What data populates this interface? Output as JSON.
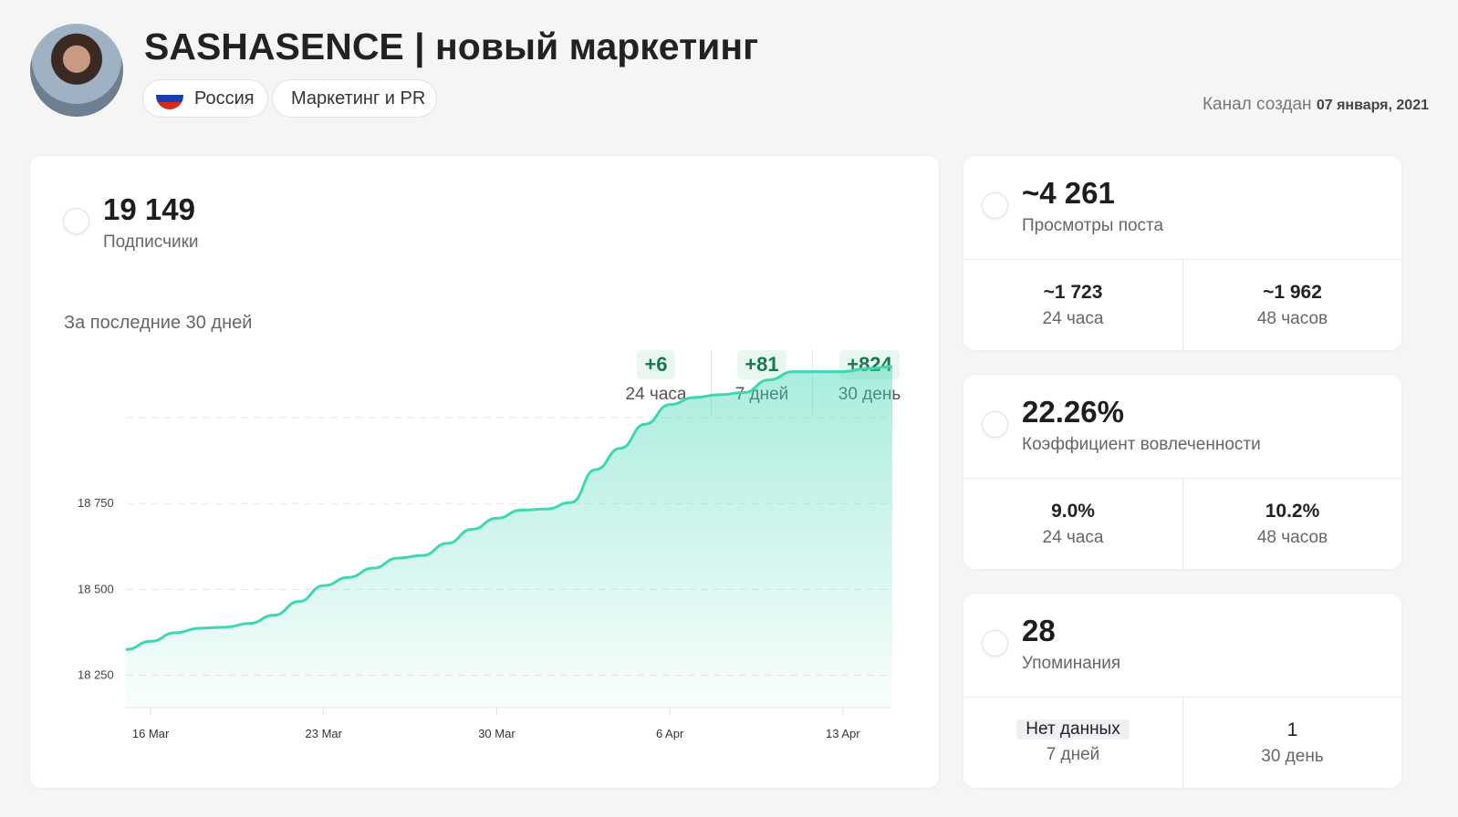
{
  "header": {
    "title": "SASHASENCE | новый маркетинг",
    "country": "Россия",
    "category": "Маркетинг и PR",
    "created_label": "Канал создан",
    "created_date": "07 января, 2021",
    "flag_colors": [
      "#ffffff",
      "#1c3fb0",
      "#d52b1e"
    ]
  },
  "subscribers": {
    "value": "19 149",
    "label": "Подписчики",
    "deltas": [
      {
        "value": "+6",
        "period": "24 часа"
      },
      {
        "value": "+81",
        "period": "7 дней"
      },
      {
        "value": "+824",
        "period": "30 день"
      }
    ],
    "chart_title": "За последние 30 дней"
  },
  "views": {
    "value": "~4 261",
    "label": "Просмотры поста",
    "sub": [
      {
        "value": "~1 723",
        "period": "24 часа"
      },
      {
        "value": "~1 962",
        "period": "48 часов"
      }
    ]
  },
  "engagement": {
    "value": "22.26%",
    "label": "Коэффициент вовлеченности",
    "sub": [
      {
        "value": "9.0%",
        "period": "24 часа"
      },
      {
        "value": "10.2%",
        "period": "48 часов"
      }
    ]
  },
  "mentions": {
    "value": "28",
    "label": "Упоминания",
    "sub": [
      {
        "value": "Нет данных",
        "period": "7 дней"
      },
      {
        "value": "1",
        "period": "30 день"
      }
    ]
  },
  "chart_data": {
    "type": "area",
    "color": "#3fd6b4",
    "ylim": [
      18156,
      19178
    ],
    "yticks": [
      18250,
      18500,
      18750,
      19000
    ],
    "ytick_labels": [
      "18 250",
      "18 500",
      "18 750",
      ""
    ],
    "grid": true,
    "x_start": "2021-03-15",
    "xtick_days": [
      1,
      8,
      15,
      22,
      29
    ],
    "xtick_labels": [
      "16 Mar",
      "23 Mar",
      "30 Mar",
      "6 Apr",
      "13 Apr"
    ],
    "values": [
      18325,
      18349,
      18374,
      18387,
      18390,
      18401,
      18425,
      18465,
      18511,
      18535,
      18562,
      18591,
      18599,
      18634,
      18675,
      18707,
      18731,
      18734,
      18753,
      18849,
      18911,
      18981,
      19038,
      19059,
      19067,
      19073,
      19110,
      19134,
      19134,
      19134,
      19143,
      19149
    ]
  }
}
